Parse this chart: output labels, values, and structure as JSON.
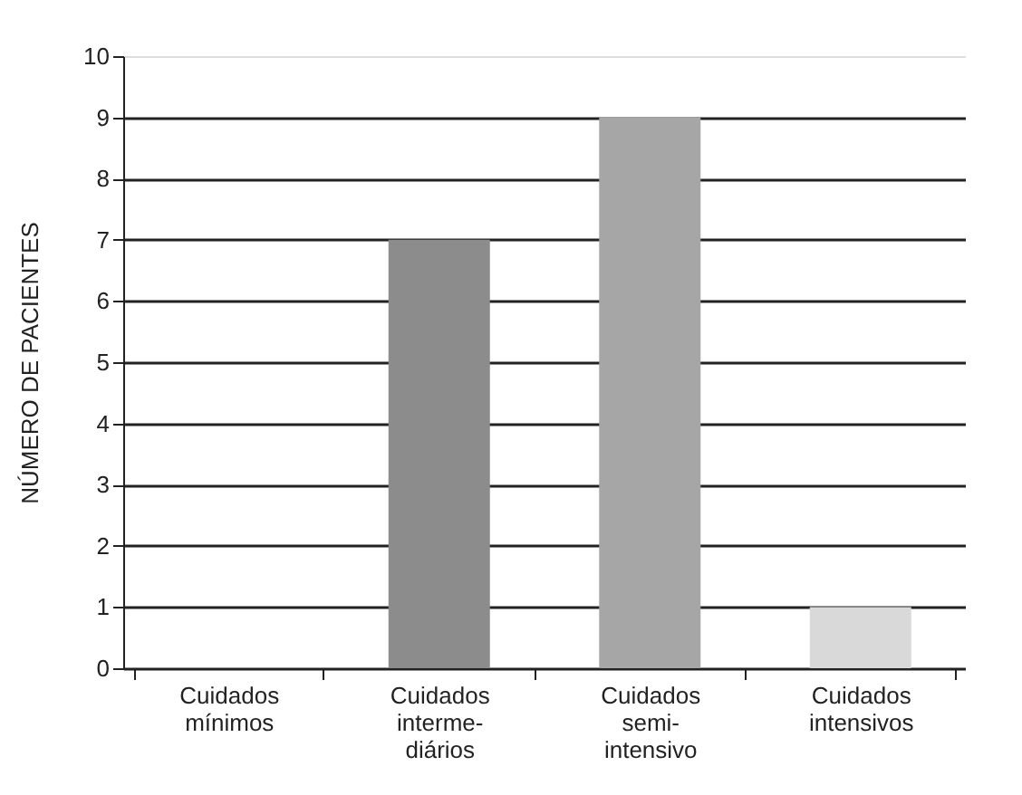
{
  "chart_data": {
    "type": "bar",
    "ylabel": "NÚMERO DE PACIENTES",
    "categories": [
      "Cuidados\nmínimos",
      "Cuidados\ninterme-\ndiários",
      "Cuidados\nsemi-\nintensivo",
      "Cuidados\nintensivos"
    ],
    "values": [
      0,
      7,
      9,
      1
    ],
    "colors": [
      "#8c8c8c",
      "#8c8c8c",
      "#a6a6a6",
      "#d9d9d9"
    ],
    "ylim": [
      0,
      10
    ],
    "yticks": [
      0,
      1,
      2,
      3,
      4,
      5,
      6,
      7,
      8,
      9,
      10
    ],
    "grid": "y"
  }
}
